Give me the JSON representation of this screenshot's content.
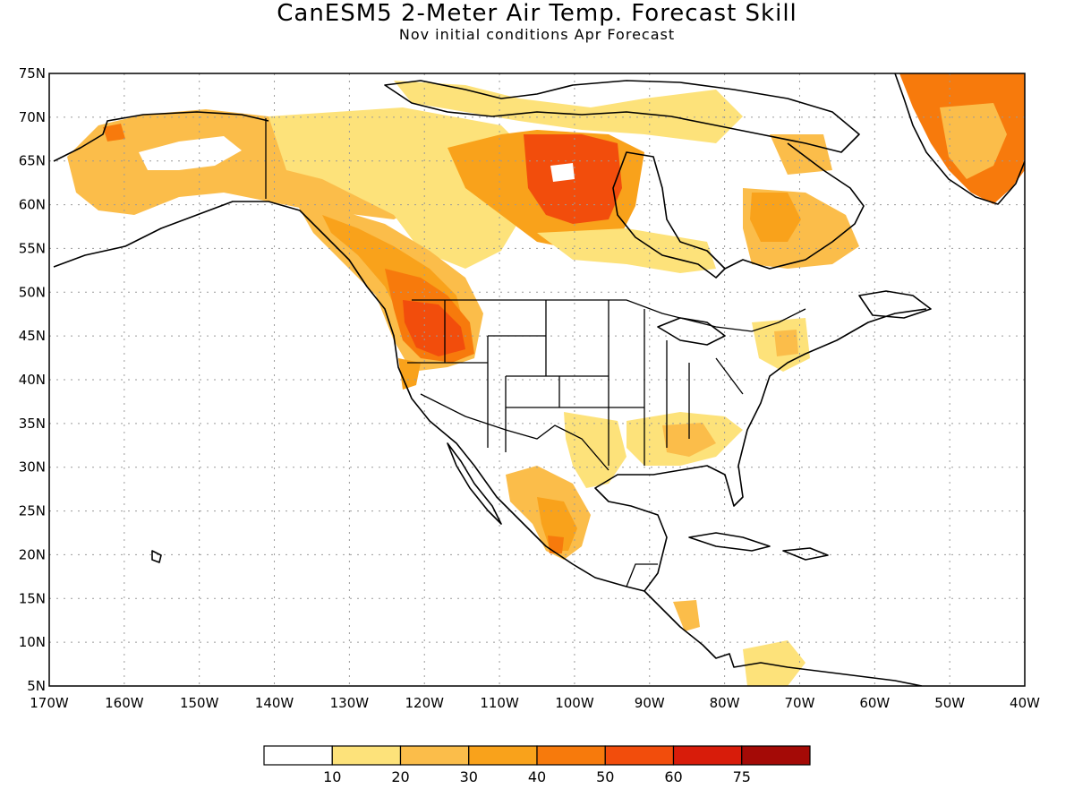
{
  "title": "CanESM5 2-Meter Air Temp. Forecast Skill",
  "subtitle": "Nov initial conditions  Apr Forecast",
  "map": {
    "region": "North America",
    "lon_range": [
      -170,
      -40
    ],
    "lat_range": [
      5,
      75
    ],
    "grid": "dotted",
    "lon_ticks": [
      "170W",
      "160W",
      "150W",
      "140W",
      "130W",
      "120W",
      "110W",
      "100W",
      "90W",
      "80W",
      "70W",
      "60W",
      "50W",
      "40W"
    ],
    "lat_ticks": [
      "75N",
      "70N",
      "65N",
      "60N",
      "55N",
      "50N",
      "45N",
      "40N",
      "35N",
      "30N",
      "25N",
      "20N",
      "15N",
      "10N",
      "5N"
    ]
  },
  "colorbar": {
    "labels": [
      "10",
      "20",
      "30",
      "40",
      "50",
      "60",
      "75"
    ],
    "colors": [
      "#ffffff",
      "#fde27a",
      "#fbbd4a",
      "#f9a21b",
      "#f77a0c",
      "#f24d0c",
      "#d81c0a",
      "#a40a06"
    ]
  },
  "chart_data": {
    "type": "heatmap",
    "title": "CanESM5 2-Meter Air Temp. Forecast Skill",
    "subtitle": "Nov initial conditions  Apr Forecast",
    "xlim": [
      -170,
      -40
    ],
    "ylim": [
      5,
      75
    ],
    "levels": [
      10,
      20,
      30,
      40,
      50,
      60,
      75
    ],
    "regions": [
      {
        "lon": [
          -168,
          -125
        ],
        "lat": [
          57,
          70
        ],
        "value_range": [
          10,
          40
        ]
      },
      {
        "lon": [
          -135,
          -115
        ],
        "lat": [
          45,
          60
        ],
        "value_range": [
          30,
          60
        ]
      },
      {
        "lon": [
          -124,
          -112
        ],
        "lat": [
          42,
          49
        ],
        "value_range": [
          50,
          60
        ]
      },
      {
        "lon": [
          -98,
          -87
        ],
        "lat": [
          58,
          67
        ],
        "value_range": [
          40,
          60
        ]
      },
      {
        "lon": [
          -77,
          -65
        ],
        "lat": [
          52,
          62
        ],
        "value_range": [
          30,
          50
        ]
      },
      {
        "lon": [
          -52,
          -40
        ],
        "lat": [
          60,
          75
        ],
        "value_range": [
          30,
          60
        ]
      },
      {
        "lon": [
          -110,
          -97
        ],
        "lat": [
          19,
          28
        ],
        "value_range": [
          20,
          50
        ]
      },
      {
        "lon": [
          -92,
          -80
        ],
        "lat": [
          30,
          35
        ],
        "value_range": [
          10,
          30
        ]
      },
      {
        "lon": [
          -84,
          -73
        ],
        "lat": [
          7,
          14
        ],
        "value_range": [
          10,
          30
        ]
      }
    ]
  }
}
